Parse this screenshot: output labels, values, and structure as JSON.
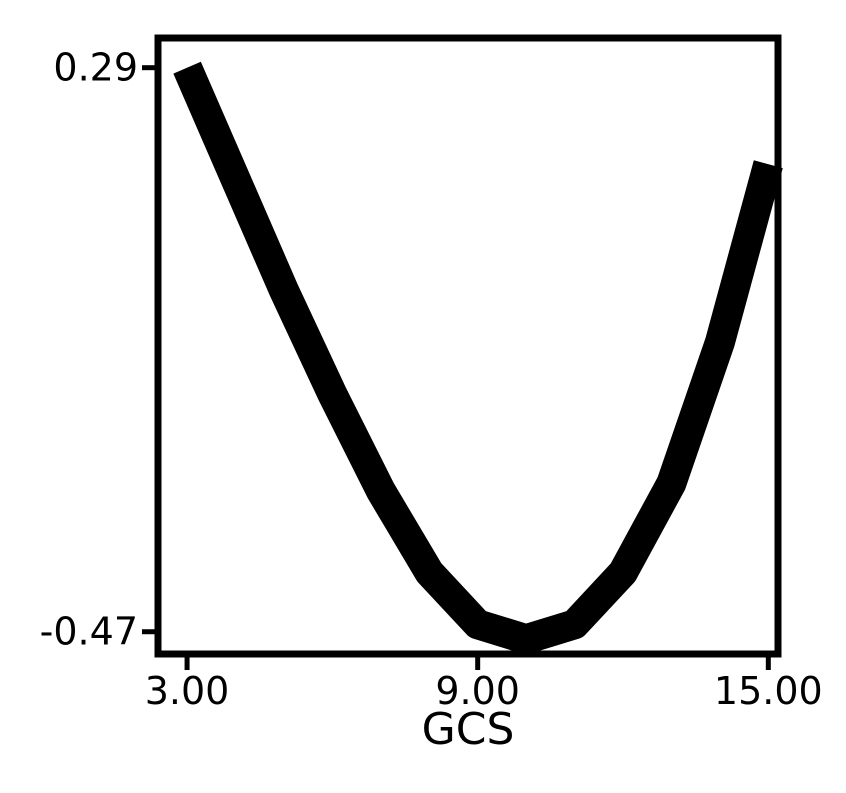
{
  "chart_data": {
    "type": "line",
    "title": "",
    "xlabel": "GCS",
    "ylabel": "",
    "xlim": [
      2.4,
      15.2
    ],
    "ylim": [
      -0.5,
      0.33
    ],
    "xticks": [
      3.0,
      9.0,
      15.0
    ],
    "xtick_labels": [
      "3.00",
      "9.00",
      "15.00"
    ],
    "yticks": [
      -0.47,
      0.29
    ],
    "ytick_labels": [
      "-0.47",
      "0.29"
    ],
    "grid": false,
    "legend": "none",
    "line_color": "#000000",
    "series": [
      {
        "x": [
          3.0,
          4.0,
          5.0,
          6.0,
          7.0,
          8.0,
          9.0,
          10.0,
          11.0,
          12.0,
          13.0,
          14.0,
          15.0
        ],
        "y": [
          0.29,
          0.14,
          -0.01,
          -0.15,
          -0.28,
          -0.39,
          -0.46,
          -0.48,
          -0.46,
          -0.39,
          -0.27,
          -0.08,
          0.16
        ]
      }
    ]
  }
}
